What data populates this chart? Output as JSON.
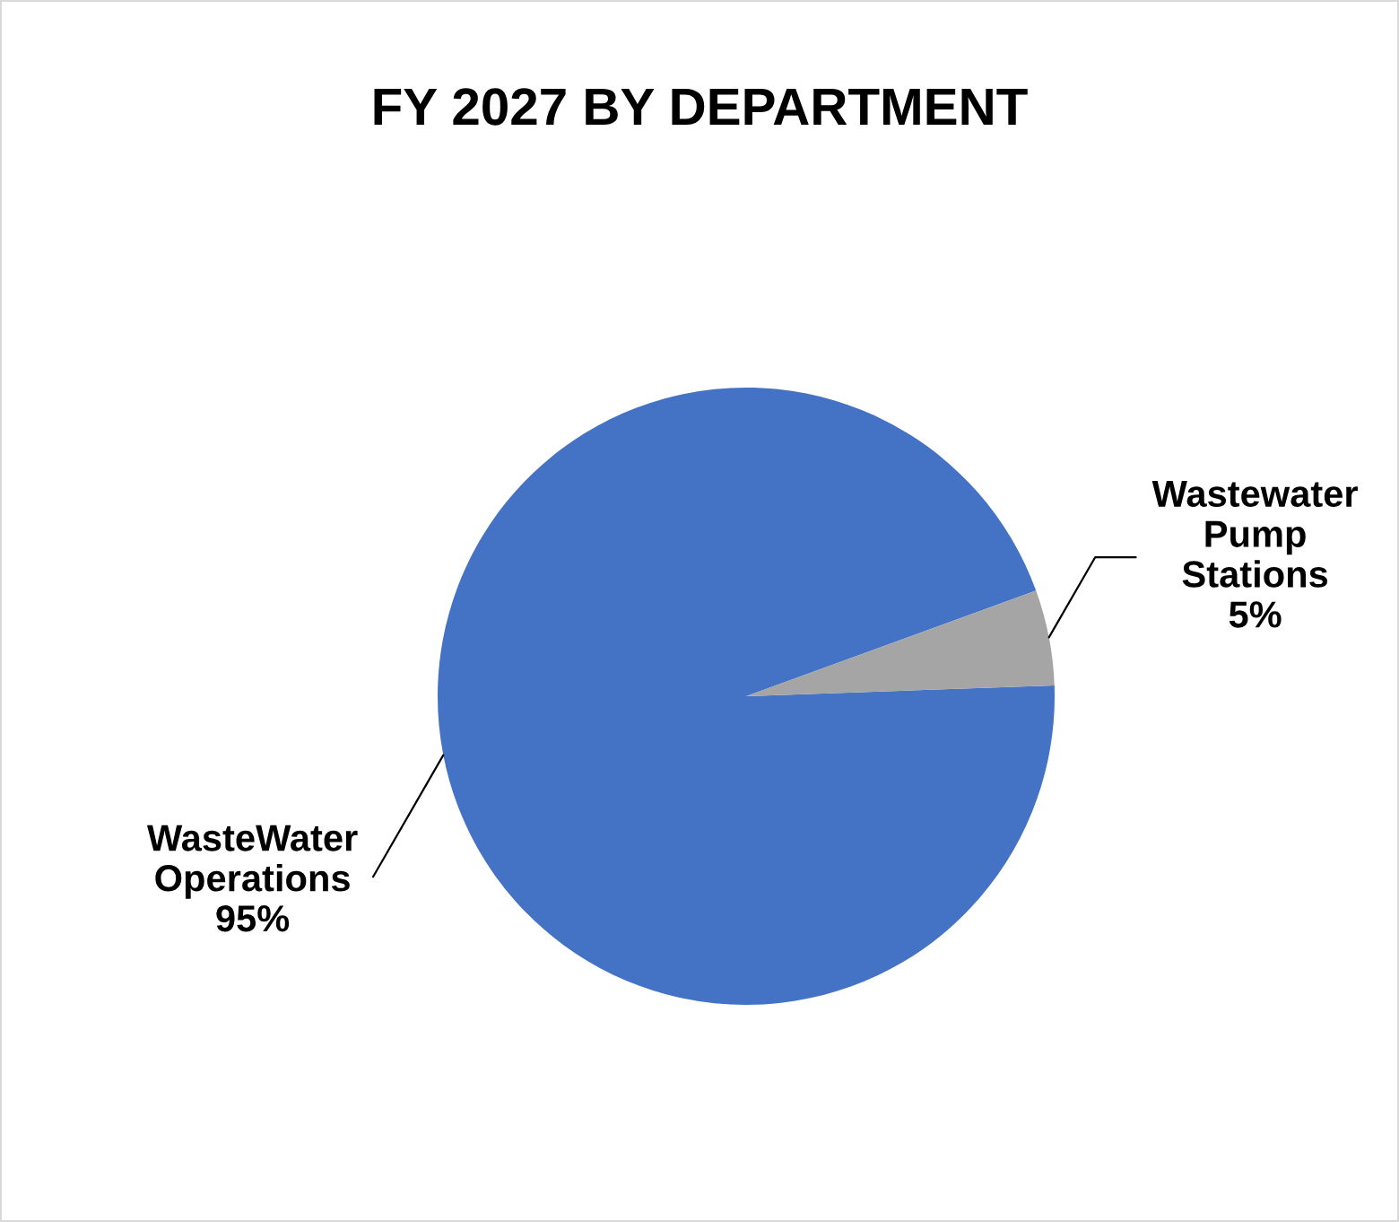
{
  "chart_data": {
    "type": "pie",
    "title": "FY 2027 BY DEPARTMENT",
    "categories": [
      "WasteWater Operations",
      "Wastewater Pump Stations"
    ],
    "values": [
      95,
      5
    ],
    "value_labels": [
      "95%",
      "5%"
    ],
    "colors": [
      "#4472c4",
      "#a5a5a5"
    ]
  }
}
